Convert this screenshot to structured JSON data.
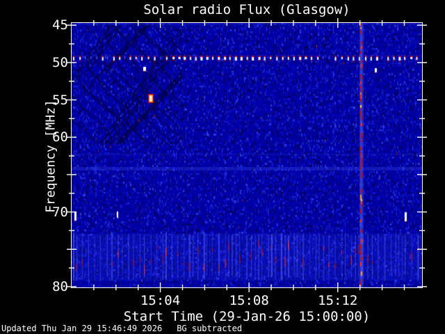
{
  "chart_data": {
    "type": "heatmap",
    "title": "Solar radio Flux (Glasgow)",
    "xlabel": "Start Time (29-Jan-26 15:00:00)",
    "ylabel": "Frequency [MHz]",
    "legend_position": "none",
    "grid": false,
    "x_axis": {
      "start_time": "15:00:00",
      "range_minutes": [
        0,
        15.8
      ],
      "major_ticks": [
        {
          "minutes": 4,
          "label": "15:04"
        },
        {
          "minutes": 8,
          "label": "15:08"
        },
        {
          "minutes": 12,
          "label": "15:12"
        }
      ],
      "minor_step_minutes": 1
    },
    "y_axis": {
      "unit": "MHz",
      "range_mhz": [
        44.7,
        80.1
      ],
      "labeled_ticks": [
        45,
        50,
        55,
        60,
        70,
        80
      ],
      "major_step_mhz": 5,
      "minor_step_mhz": 2.5,
      "direction": "increasing-downward"
    },
    "palette": {
      "figure_bg": "#000000",
      "text": "#ffffff",
      "base": "#0000a6",
      "dark": "#000058",
      "darker": "#000078",
      "mid": "#0000b4",
      "light": "#1520cc",
      "lighter": "#2c38e4",
      "rfi_white": "#ffffff",
      "hot_red": "#d81000",
      "hot_orange": "#ff5500",
      "hot_yellow": "#ffd24a"
    },
    "features": {
      "rfi_dotted_line": {
        "freq_mhz": 49.4,
        "dash_spacing_minutes": 0.235,
        "style": "white dashes with red tips across full width"
      },
      "vertical_burst": {
        "time_minutes": 13.05,
        "full_height": true,
        "style": "narrow red streak with orange-yellow hot spots"
      },
      "noise_band": {
        "freq_range_mhz": [
          72.9,
          79.2
        ],
        "red_core_range_mhz": [
          73.8,
          78.3
        ],
        "style": "dense light-blue vertical stripes with red cores"
      },
      "interference_fringes": {
        "region": "upper-left",
        "freq_range_mhz": [
          45,
          61
        ],
        "time_range_minutes": [
          0,
          5
        ],
        "style": "dark wavy moire chevrons"
      },
      "point_sources": [
        {
          "time_minutes": 0.18,
          "freq_mhz": 70.6,
          "w": 3,
          "h": 12,
          "halo": false
        },
        {
          "time_minutes": 2.1,
          "freq_mhz": 70.4,
          "w": 2,
          "h": 9,
          "halo": false
        },
        {
          "time_minutes": 3.3,
          "freq_mhz": 50.9,
          "w": 4,
          "h": 6,
          "halo": false
        },
        {
          "time_minutes": 3.6,
          "freq_mhz": 54.8,
          "w": 6,
          "h": 11,
          "halo": true
        },
        {
          "time_minutes": 13.7,
          "freq_mhz": 51.1,
          "w": 3,
          "h": 6,
          "halo": false
        },
        {
          "time_minutes": 15.05,
          "freq_mhz": 70.6,
          "w": 3,
          "h": 13,
          "halo": false
        }
      ]
    }
  },
  "footer": {
    "updated": "Updated Thu Jan 29 15:46:49 2026",
    "note": "BG subtracted"
  }
}
